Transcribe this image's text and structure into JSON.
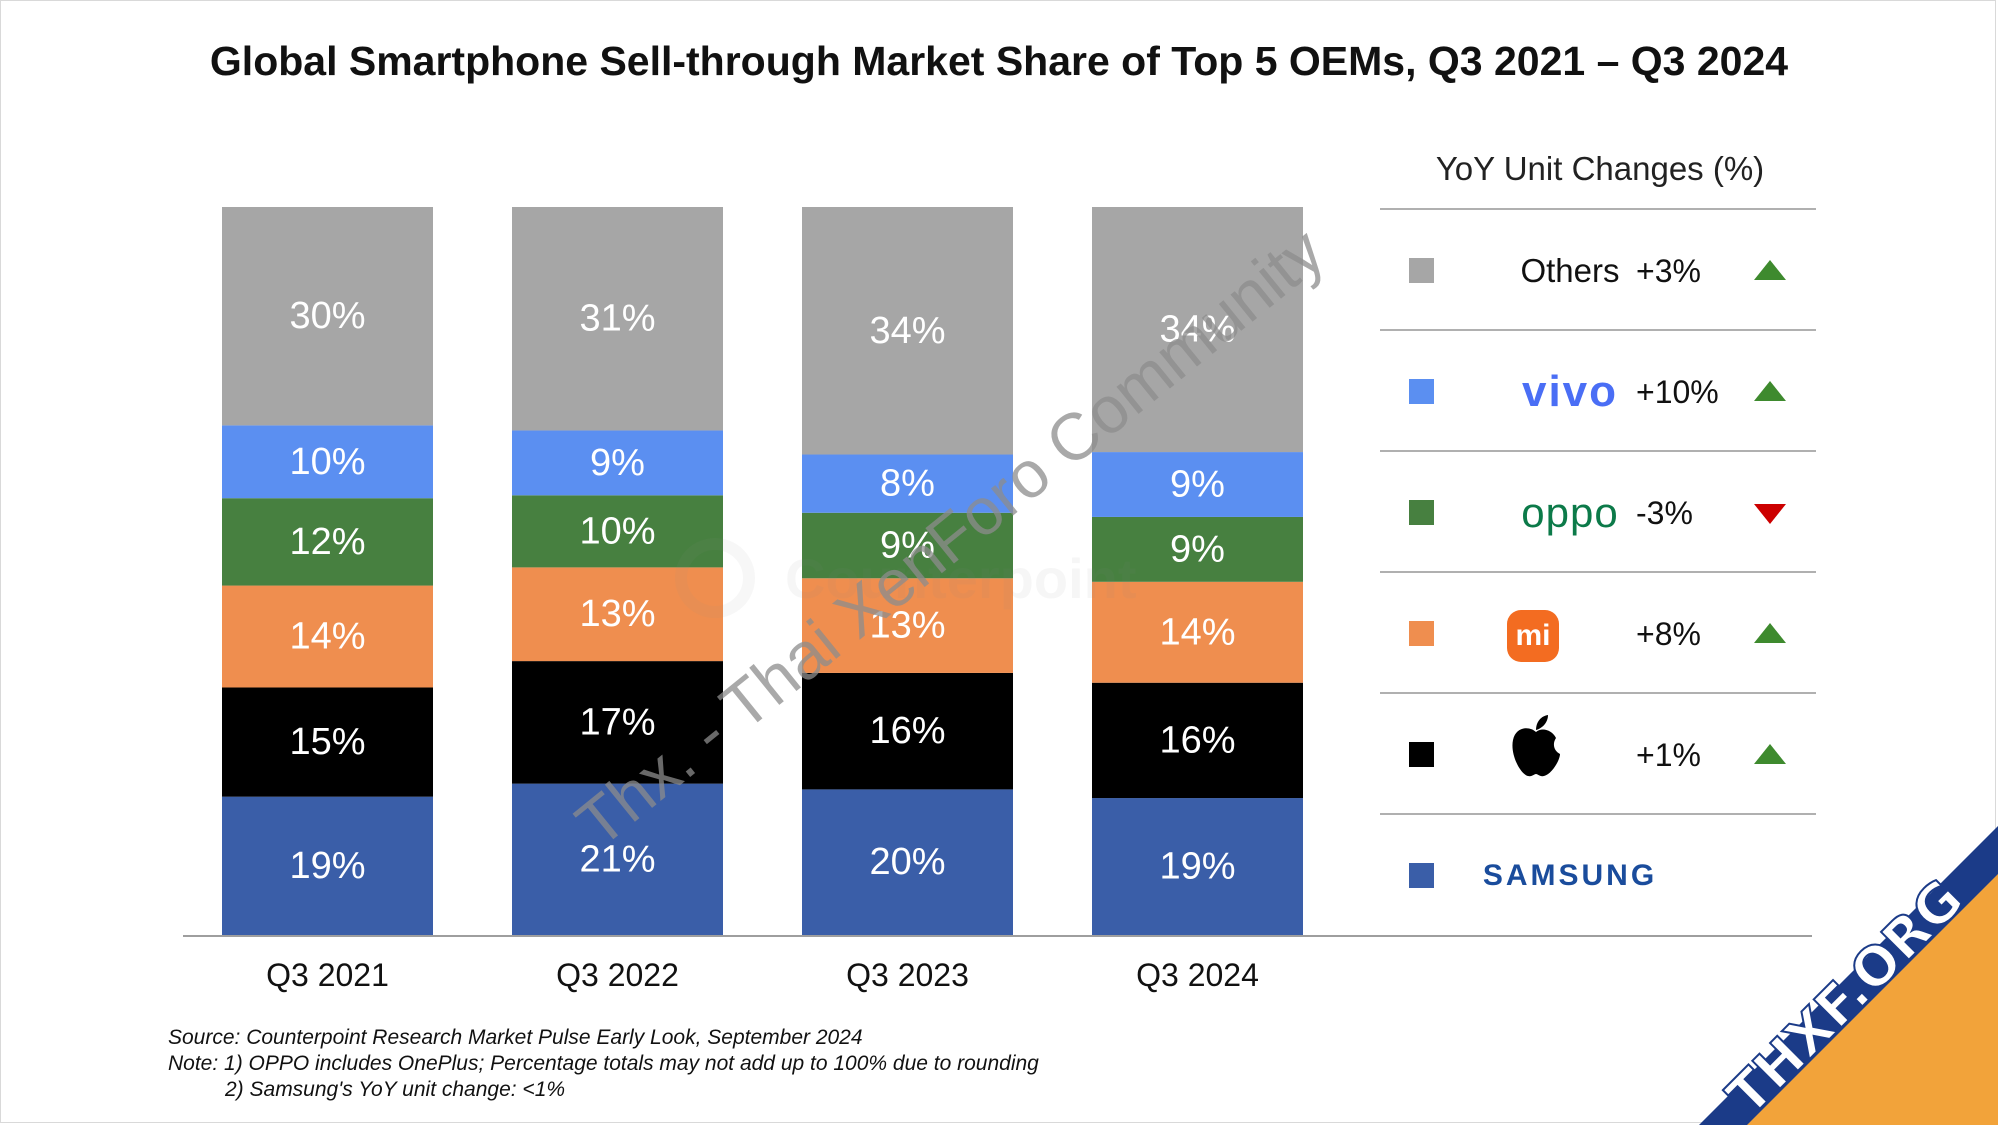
{
  "title": "Global Smartphone Sell-through Market Share of Top 5 OEMs, Q3 2021 – Q3 2024",
  "chart_data": {
    "type": "bar",
    "stacked": true,
    "percent_stacked": true,
    "title": "Global Smartphone Sell-through Market Share of Top 5 OEMs, Q3 2021 – Q3 2024",
    "xlabel": "",
    "ylabel": "",
    "categories": [
      "Q3 2021",
      "Q3 2022",
      "Q3 2023",
      "Q3 2024"
    ],
    "series": [
      {
        "name": "Samsung",
        "color": "#3a5ea8",
        "values": [
          19,
          21,
          20,
          19
        ],
        "labels": [
          "19%",
          "21%",
          "20%",
          "19%"
        ]
      },
      {
        "name": "Apple",
        "color": "#000000",
        "values": [
          15,
          17,
          16,
          16
        ],
        "labels": [
          "15%",
          "17%",
          "16%",
          "16%"
        ]
      },
      {
        "name": "Xiaomi",
        "color": "#ef8e4f",
        "values": [
          14,
          13,
          13,
          14
        ],
        "labels": [
          "14%",
          "13%",
          "13%",
          "14%"
        ]
      },
      {
        "name": "OPPO",
        "color": "#478040",
        "values": [
          12,
          10,
          9,
          9
        ],
        "labels": [
          "12%",
          "10%",
          "9%",
          "9%"
        ]
      },
      {
        "name": "vivo",
        "color": "#5b8ff1",
        "values": [
          10,
          9,
          8,
          9
        ],
        "labels": [
          "10%",
          "9%",
          "8%",
          "9%"
        ]
      },
      {
        "name": "Others",
        "color": "#a6a6a6",
        "values": [
          30,
          31,
          34,
          34
        ],
        "labels": [
          "30%",
          "31%",
          "34%",
          "34%"
        ]
      }
    ],
    "ylim": [
      0,
      100
    ],
    "grid": false,
    "legend_position": "right"
  },
  "legend": {
    "title": "YoY Unit Changes (%)",
    "rows": [
      {
        "name": "Others",
        "change": "+3%",
        "direction": "up",
        "color": "#a6a6a6"
      },
      {
        "name": "vivo",
        "change": "+10%",
        "direction": "up",
        "color": "#5b8ff1"
      },
      {
        "name": "oppo",
        "change": "-3%",
        "direction": "down",
        "color": "#478040"
      },
      {
        "name": "mi",
        "change": "+8%",
        "direction": "up",
        "color": "#ef8e4f"
      },
      {
        "name": "apple",
        "change": "+1%",
        "direction": "up",
        "color": "#000000"
      },
      {
        "name": "SAMSUNG",
        "change": "",
        "direction": "none",
        "color": "#3a5ea8"
      }
    ],
    "up_color": "#3e8a2e",
    "down_color": "#cc0000"
  },
  "footnotes": {
    "source": "Source: Counterpoint Research Market Pulse Early Look, September 2024",
    "note1": "Note: 1) OPPO includes OnePlus; Percentage totals may not add up to 100% due to rounding",
    "note2": "2) Samsung's YoY unit change: <1%"
  },
  "watermark": {
    "diagonal_text": "Thx. - Thai XenForo Community",
    "faint_text": "Counterpoint",
    "corner_text": "THXF.ORG"
  }
}
